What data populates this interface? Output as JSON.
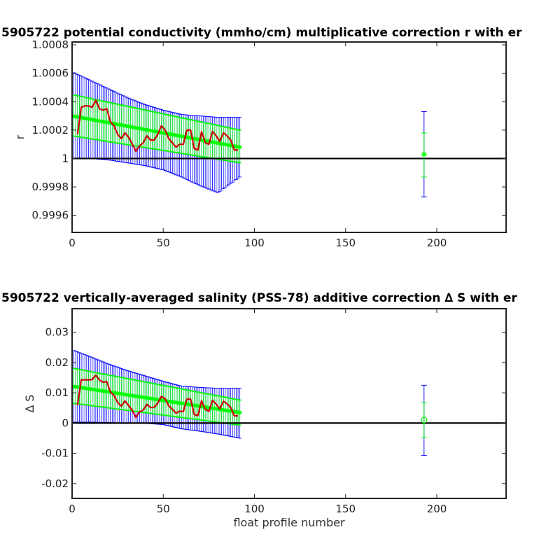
{
  "chart_data": [
    {
      "type": "line",
      "title": "5905722 potential conductivity (mmho/cm) multiplicative correction r with er",
      "xlabel": "",
      "ylabel": "r",
      "xlim": [
        0,
        238
      ],
      "ylim": [
        0.99948,
        1.00082
      ],
      "x_ticks": [
        0,
        50,
        100,
        150,
        200
      ],
      "x_tick_labels": [
        "0",
        "50",
        "100",
        "150",
        "200"
      ],
      "y_ticks": [
        0.9996,
        0.9998,
        1.0,
        1.0002,
        1.0004,
        1.0006,
        1.0008
      ],
      "y_tick_labels": [
        "0.9996",
        "0.9998",
        "1",
        "1.0002",
        "1.0004",
        "1.0006",
        "1.0008"
      ],
      "reference_line": 1.0,
      "series": [
        {
          "role": "blue_error_band",
          "color": "#0000ff",
          "x": [
            0,
            10,
            20,
            30,
            40,
            50,
            60,
            70,
            80,
            92
          ],
          "upper": [
            1.00061,
            1.00055,
            1.00049,
            1.00043,
            1.00038,
            1.00034,
            1.00031,
            1.0003,
            1.00029,
            1.00029
          ],
          "lower": [
            1.0,
            1.0,
            0.99999,
            0.99997,
            0.99995,
            0.99992,
            0.99987,
            0.99981,
            0.99976,
            0.99987
          ]
        },
        {
          "role": "green_fit",
          "color": "#00ff00",
          "x": [
            0,
            92
          ],
          "center": [
            1.0003,
            1.00008
          ],
          "upper": [
            1.00045,
            1.0002
          ],
          "lower": [
            1.00016,
            0.99997
          ]
        },
        {
          "role": "red_measured",
          "color": "#d00000",
          "x": [
            3,
            5,
            7,
            9,
            11,
            13,
            15,
            17,
            19,
            21,
            23,
            25,
            27,
            29,
            31,
            33,
            35,
            37,
            39,
            41,
            43,
            45,
            47,
            49,
            51,
            53,
            55,
            57,
            59,
            61,
            63,
            65,
            67,
            69,
            71,
            73,
            75,
            77,
            79,
            81,
            83,
            85,
            87,
            89,
            91
          ],
          "y": [
            1.00017,
            1.00036,
            1.00037,
            1.00037,
            1.00036,
            1.00041,
            1.00035,
            1.00034,
            1.00035,
            1.00026,
            1.00023,
            1.00017,
            1.00014,
            1.00018,
            1.00015,
            1.0001,
            1.00005,
            1.00009,
            1.00011,
            1.00016,
            1.00013,
            1.00013,
            1.00017,
            1.00023,
            1.0002,
            1.00014,
            1.00011,
            1.00008,
            1.0001,
            1.0001,
            1.0002,
            1.0002,
            1.00007,
            1.00006,
            1.00019,
            1.00011,
            1.0001,
            1.00019,
            1.00016,
            1.00012,
            1.00018,
            1.00016,
            1.00013,
            1.00006,
            1.00006
          ]
        },
        {
          "role": "isolated_point_blue",
          "color": "#0000ff",
          "x": [
            193
          ],
          "y": [
            1.0
          ],
          "upper": [
            1.00033
          ],
          "lower": [
            0.99973
          ]
        },
        {
          "role": "isolated_point_green",
          "color": "#00ff00",
          "marker": "*",
          "x": [
            193
          ],
          "y": [
            1.00003
          ],
          "upper": [
            1.00018
          ],
          "lower": [
            0.99987
          ]
        }
      ]
    },
    {
      "type": "line",
      "title": "5905722 vertically-averaged salinity (PSS-78) additive correction ∆ S with er",
      "xlabel": "float profile number",
      "ylabel": "∆ S",
      "xlim": [
        0,
        238
      ],
      "ylim": [
        -0.0249,
        0.0378
      ],
      "x_ticks": [
        0,
        50,
        100,
        150,
        200
      ],
      "x_tick_labels": [
        "0",
        "50",
        "100",
        "150",
        "200"
      ],
      "y_ticks": [
        -0.02,
        -0.01,
        0.0,
        0.01,
        0.02,
        0.03
      ],
      "y_tick_labels": [
        "-0.02",
        "-0.01",
        "0",
        "0.01",
        "0.02",
        "0.03"
      ],
      "reference_line": 0.0,
      "series": [
        {
          "role": "blue_error_band",
          "color": "#0000ff",
          "x": [
            0,
            10,
            20,
            30,
            40,
            50,
            60,
            70,
            80,
            92
          ],
          "upper": [
            0.0242,
            0.0219,
            0.0195,
            0.0174,
            0.0156,
            0.0138,
            0.0122,
            0.0118,
            0.0115,
            0.0115
          ],
          "lower": [
            0.0003,
            0.0003,
            0.0002,
            0.0,
            -0.0001,
            -0.0005,
            -0.0019,
            -0.0027,
            -0.0036,
            -0.005
          ]
        },
        {
          "role": "green_fit",
          "color": "#00ff00",
          "x": [
            0,
            92
          ],
          "center": [
            0.0122,
            0.0035
          ],
          "upper": [
            0.0182,
            0.0076
          ],
          "lower": [
            0.0066,
            -0.0007
          ]
        },
        {
          "role": "red_measured",
          "color": "#d00000",
          "x": [
            3,
            5,
            7,
            9,
            11,
            13,
            15,
            17,
            19,
            21,
            23,
            25,
            27,
            29,
            31,
            33,
            35,
            37,
            39,
            41,
            43,
            45,
            47,
            49,
            51,
            53,
            55,
            57,
            59,
            61,
            63,
            65,
            67,
            69,
            71,
            73,
            75,
            77,
            79,
            81,
            83,
            85,
            87,
            89,
            91
          ],
          "y": [
            0.0059,
            0.0143,
            0.0143,
            0.0143,
            0.0144,
            0.0158,
            0.0142,
            0.0135,
            0.0137,
            0.0103,
            0.0091,
            0.0068,
            0.0056,
            0.0073,
            0.0058,
            0.0042,
            0.0019,
            0.0037,
            0.0043,
            0.0062,
            0.0051,
            0.0052,
            0.0066,
            0.0088,
            0.008,
            0.0057,
            0.0045,
            0.0033,
            0.0039,
            0.0038,
            0.0079,
            0.0079,
            0.0028,
            0.0025,
            0.0074,
            0.0045,
            0.0039,
            0.0075,
            0.0063,
            0.0047,
            0.0072,
            0.0064,
            0.0051,
            0.0024,
            0.0024
          ]
        },
        {
          "role": "isolated_point_blue",
          "color": "#0000ff",
          "x": [
            193
          ],
          "y": [
            0.001
          ],
          "upper": [
            0.0125
          ],
          "lower": [
            -0.0107
          ]
        },
        {
          "role": "isolated_point_green",
          "color": "#00ff00",
          "marker": "o",
          "x": [
            193
          ],
          "y": [
            0.001
          ],
          "upper": [
            0.0067
          ],
          "lower": [
            -0.0048
          ]
        }
      ]
    }
  ]
}
